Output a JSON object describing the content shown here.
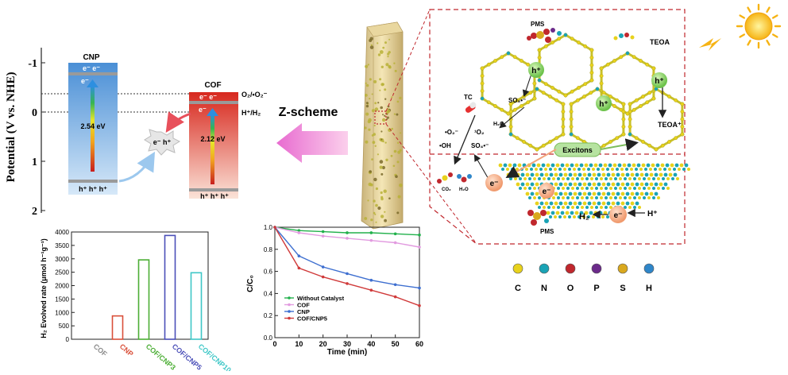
{
  "band_diagram": {
    "ylabel": "Potential (V vs. NHE)",
    "ticks": [
      "-1",
      "0",
      "1",
      "2"
    ],
    "cnp": {
      "title": "CNP",
      "gap": "2.54 eV",
      "electrons_top": "e⁻ e⁻",
      "electron_mid": "e⁻",
      "holes": "h⁺ h⁺ h⁺"
    },
    "cof": {
      "title": "COF",
      "gap": "2.12 eV",
      "electrons_top": "e⁻ e⁻",
      "electron_mid": "e⁻",
      "holes": "h⁺ h⁺ h⁺"
    },
    "recomb": "e⁻ h⁺",
    "o2_label": "O₂/•O₂⁻",
    "h_label": "H⁺/H₂",
    "zscheme": "Z-scheme"
  },
  "mechanism": {
    "pms_top": "PMS",
    "pms_bottom": "PMS",
    "teoa": "TEOA",
    "teoa_plus": "TEOA⁺",
    "tc": "TC",
    "so5": "SO₅•⁻",
    "h2o": "H₂O",
    "h2o_bottom": "H₂O",
    "co2": "CO₂",
    "o2rad": "•O₂⁻",
    "singlet": "¹O₂",
    "oh": "•OH",
    "so4": "SO₄•⁻",
    "excitons": "Excitons",
    "h2": "H₂",
    "hplus": "H⁺",
    "hole": "h⁺",
    "electron": "e⁻"
  },
  "legend_atoms": [
    {
      "label": "C",
      "color": "#e8d21c"
    },
    {
      "label": "N",
      "color": "#1aa3b5"
    },
    {
      "label": "O",
      "color": "#c0272d"
    },
    {
      "label": "P",
      "color": "#6b2a8a"
    },
    {
      "label": "S",
      "color": "#d9a81e"
    },
    {
      "label": "H",
      "color": "#2f86c9"
    }
  ],
  "chart_data": [
    {
      "type": "bar",
      "ylabel": "H₂ Evolved rate (μmol h⁻¹g⁻¹)",
      "ylim": [
        0,
        4000
      ],
      "yticks": [
        "0",
        "500",
        "1000",
        "1500",
        "2000",
        "2500",
        "3000",
        "3500",
        "4000"
      ],
      "categories": [
        "COF",
        "CNP",
        "COF/CNP3",
        "COF/CNP5",
        "COF/CNP10"
      ],
      "values": [
        0,
        870,
        2960,
        3870,
        2480
      ],
      "colors": [
        "#8a8a8a",
        "#d9503a",
        "#4cae35",
        "#4b4fb8",
        "#3fc7c7"
      ]
    },
    {
      "type": "line",
      "xlabel": "Time (min)",
      "ylabel": "C/C₀",
      "xlim": [
        0,
        60
      ],
      "ylim": [
        0,
        1.0
      ],
      "xticks": [
        "0",
        "10",
        "20",
        "30",
        "40",
        "50",
        "60"
      ],
      "yticks": [
        "0.0",
        "0.2",
        "0.4",
        "0.6",
        "0.8",
        "1.0"
      ],
      "x": [
        0,
        10,
        20,
        30,
        40,
        50,
        60
      ],
      "series": [
        {
          "name": "Without Catalyst",
          "color": "#22b14c",
          "values": [
            1.0,
            0.97,
            0.96,
            0.95,
            0.95,
            0.94,
            0.93
          ]
        },
        {
          "name": "COF",
          "color": "#e29be0",
          "values": [
            1.0,
            0.95,
            0.92,
            0.9,
            0.88,
            0.86,
            0.82
          ]
        },
        {
          "name": "CNP",
          "color": "#3e6fd0",
          "values": [
            1.0,
            0.74,
            0.64,
            0.58,
            0.52,
            0.48,
            0.45
          ]
        },
        {
          "name": "COF/CNP5",
          "color": "#d03a3a",
          "values": [
            1.0,
            0.63,
            0.55,
            0.49,
            0.43,
            0.37,
            0.29
          ]
        }
      ]
    }
  ]
}
